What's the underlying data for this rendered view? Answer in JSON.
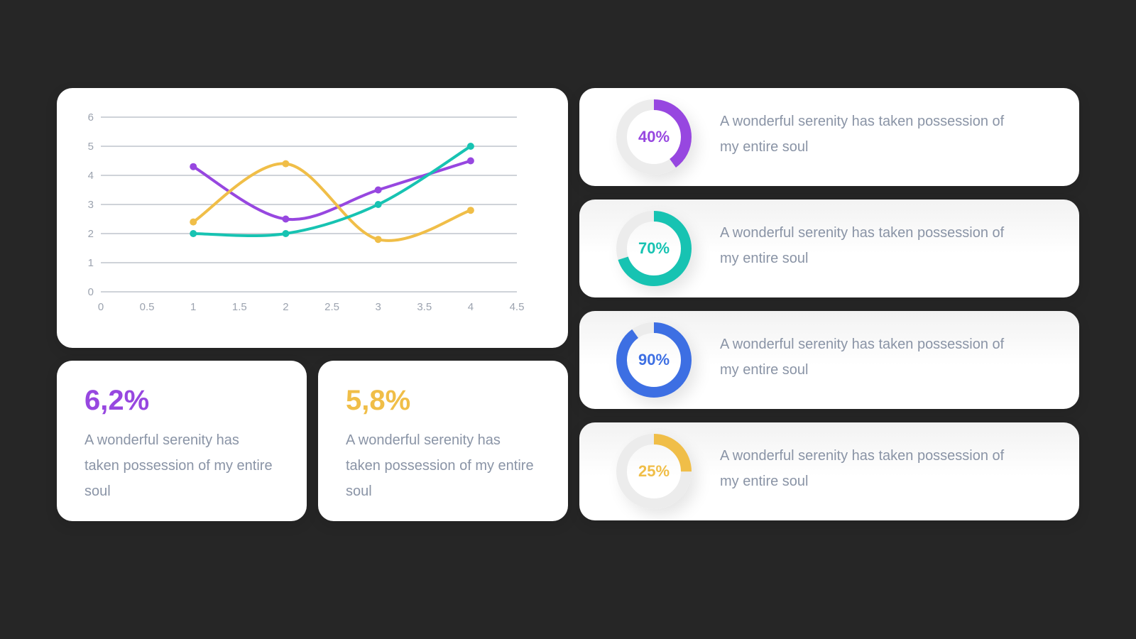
{
  "colors": {
    "purple": "#9747e0",
    "teal": "#17c3b2",
    "blue": "#3d6fe3",
    "yellow": "#f0be48",
    "track": "#ececec",
    "grid": "#cfd3d9",
    "text": "#8a94a6"
  },
  "chart_data": {
    "type": "line",
    "xlim": [
      0,
      4.5
    ],
    "ylim": [
      0,
      6
    ],
    "x_ticks": [
      "0",
      "0.5",
      "1",
      "1.5",
      "2",
      "2.5",
      "3",
      "3.5",
      "4",
      "4.5"
    ],
    "y_ticks": [
      "0",
      "1",
      "2",
      "3",
      "4",
      "5",
      "6"
    ],
    "grid": true,
    "smooth": true,
    "series": [
      {
        "color": "#9747e0",
        "x": [
          1,
          2,
          3,
          4
        ],
        "y": [
          4.3,
          2.5,
          3.5,
          4.5
        ]
      },
      {
        "color": "#f0be48",
        "x": [
          1,
          2,
          3,
          4
        ],
        "y": [
          2.4,
          4.4,
          1.8,
          2.8
        ]
      },
      {
        "color": "#17c3b2",
        "x": [
          1,
          2,
          3,
          4
        ],
        "y": [
          2.0,
          2.0,
          3.0,
          5.0
        ]
      }
    ]
  },
  "stats": [
    {
      "value": "6,2%",
      "color": "#9747e0",
      "text": "A wonderful serenity has taken possession of my entire soul"
    },
    {
      "value": "5,8%",
      "color": "#f0be48",
      "text": "A wonderful serenity has taken possession of my entire soul"
    }
  ],
  "rings": [
    {
      "label": "40%",
      "percent": 40,
      "color": "#9747e0",
      "text": "A wonderful serenity has taken possession of my entire soul"
    },
    {
      "label": "70%",
      "percent": 70,
      "color": "#17c3b2",
      "text": "A wonderful serenity has taken possession of my entire soul"
    },
    {
      "label": "90%",
      "percent": 90,
      "color": "#3d6fe3",
      "text": "A wonderful serenity has taken possession of my entire soul"
    },
    {
      "label": "25%",
      "percent": 25,
      "color": "#f0be48",
      "text": "A wonderful serenity has taken possession of my entire soul"
    }
  ]
}
